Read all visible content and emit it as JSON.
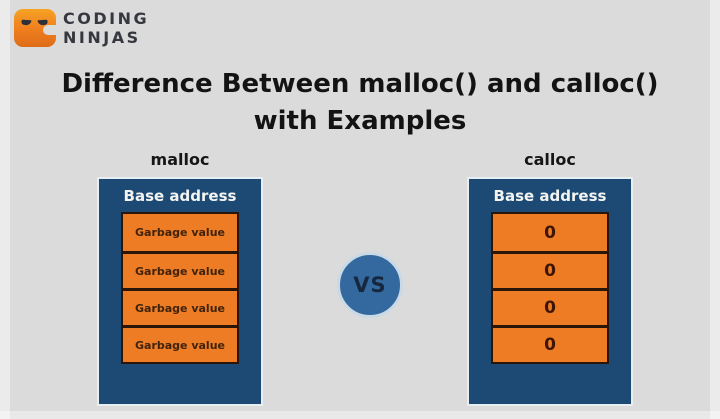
{
  "brand": {
    "line1": "CODING",
    "line2": "NINJAS",
    "logo_icon": "coding-ninjas-c-with-ninja-eyes"
  },
  "title": {
    "line1": "Difference Between malloc() and calloc()",
    "line2": "with Examples"
  },
  "vs_label": "VS",
  "malloc_panel": {
    "label": "malloc",
    "header": "Base address",
    "cells": [
      "Garbage value",
      "Garbage value",
      "Garbage value",
      "Garbage value"
    ]
  },
  "calloc_panel": {
    "label": "calloc",
    "header": "Base address",
    "cells": [
      "0",
      "0",
      "0",
      "0"
    ]
  },
  "colors": {
    "background": "#dbdbdb",
    "panel_navy": "#1d4a75",
    "cell_orange": "#ee7c25",
    "divider_dark": "#2a1608",
    "vs_circle_blue": "#34699f",
    "text_dark": "#131313",
    "header_text": "#f4f4f1",
    "malloc_cell_text": "#40230a",
    "calloc_cell_text": "#3c1603",
    "brand_text": "#35383e",
    "logo_orange": "#ef7e1f"
  }
}
